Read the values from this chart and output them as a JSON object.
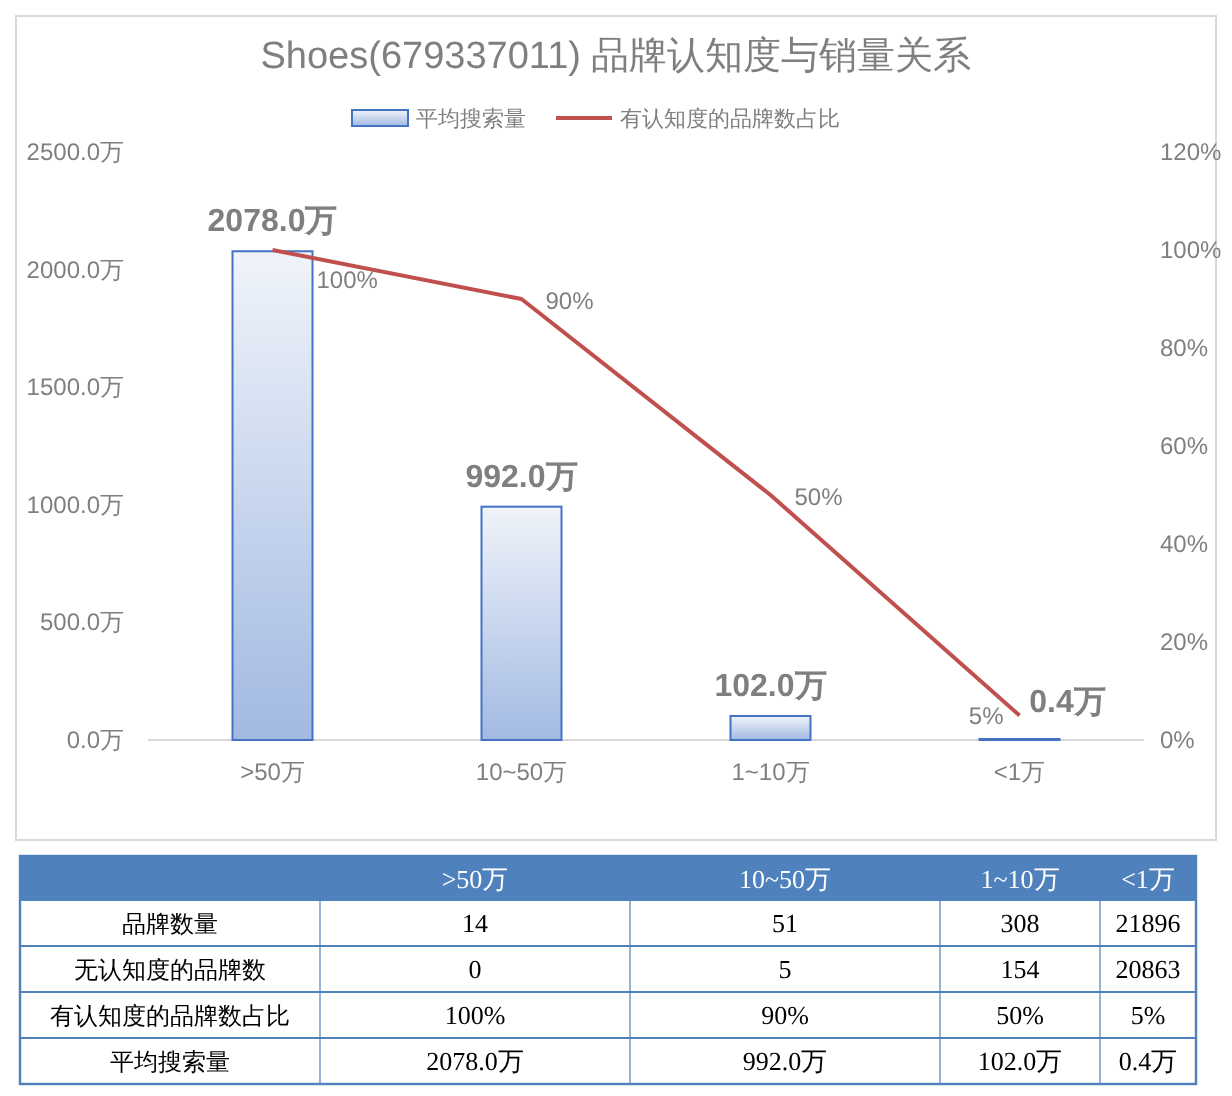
{
  "chart_data": [
    {
      "type": "bar",
      "title": "Shoes(679337011)  品牌认知度与销量关系",
      "categories": [
        ">50万",
        "10~50万",
        "1~10万",
        "<1万"
      ],
      "ylim": [
        0,
        2500
      ],
      "yticks": [
        {
          "value": 0,
          "label": "0.0万"
        },
        {
          "value": 500,
          "label": "500.0万"
        },
        {
          "value": 1000,
          "label": "1000.0万"
        },
        {
          "value": 1500,
          "label": "1500.0万"
        },
        {
          "value": 2000,
          "label": "2000.0万"
        },
        {
          "value": 2500,
          "label": "2500.0万"
        }
      ],
      "y2lim": [
        0,
        120
      ],
      "y2ticks": [
        {
          "value": 0,
          "label": "0%"
        },
        {
          "value": 20,
          "label": "20%"
        },
        {
          "value": 40,
          "label": "40%"
        },
        {
          "value": 60,
          "label": "60%"
        },
        {
          "value": 80,
          "label": "80%"
        },
        {
          "value": 100,
          "label": "100%"
        },
        {
          "value": 120,
          "label": "120%"
        }
      ],
      "legend": "top",
      "series": [
        {
          "name": "平均搜索量",
          "color": "#4472c4",
          "values": [
            2078,
            992,
            102,
            0.4
          ],
          "value_labels": [
            "2078.0万",
            "992.0万",
            "102.0万",
            "0.4万"
          ]
        },
        {
          "name": "有认知度的品牌数占比",
          "type": "line",
          "axis": "y2",
          "color": "#c0504d",
          "values": [
            100,
            90,
            50,
            5
          ],
          "value_labels": [
            "100%",
            "90%",
            "50%",
            "5%"
          ]
        }
      ]
    },
    {
      "type": "other",
      "categories": [
        ">50万",
        "10~50万",
        "1~10万",
        "<1万"
      ],
      "series": [
        {
          "name": "品牌数量",
          "values": [
            14,
            51,
            308,
            21896
          ],
          "value_labels": [
            "14",
            "51",
            "308",
            "21896"
          ]
        },
        {
          "name": "无认知度的品牌数",
          "values": [
            0,
            5,
            154,
            20863
          ],
          "value_labels": [
            "0",
            "5",
            "154",
            "20863"
          ]
        },
        {
          "name": "有认知度的品牌数占比",
          "values": [
            100,
            90,
            50,
            5
          ],
          "value_labels": [
            "100%",
            "90%",
            "50%",
            "5%"
          ]
        },
        {
          "name": "平均搜索量",
          "values": [
            2078,
            992,
            102,
            0.4
          ],
          "value_labels": [
            "2078.0万",
            "992.0万",
            "102.0万",
            "0.4万"
          ]
        }
      ]
    }
  ]
}
